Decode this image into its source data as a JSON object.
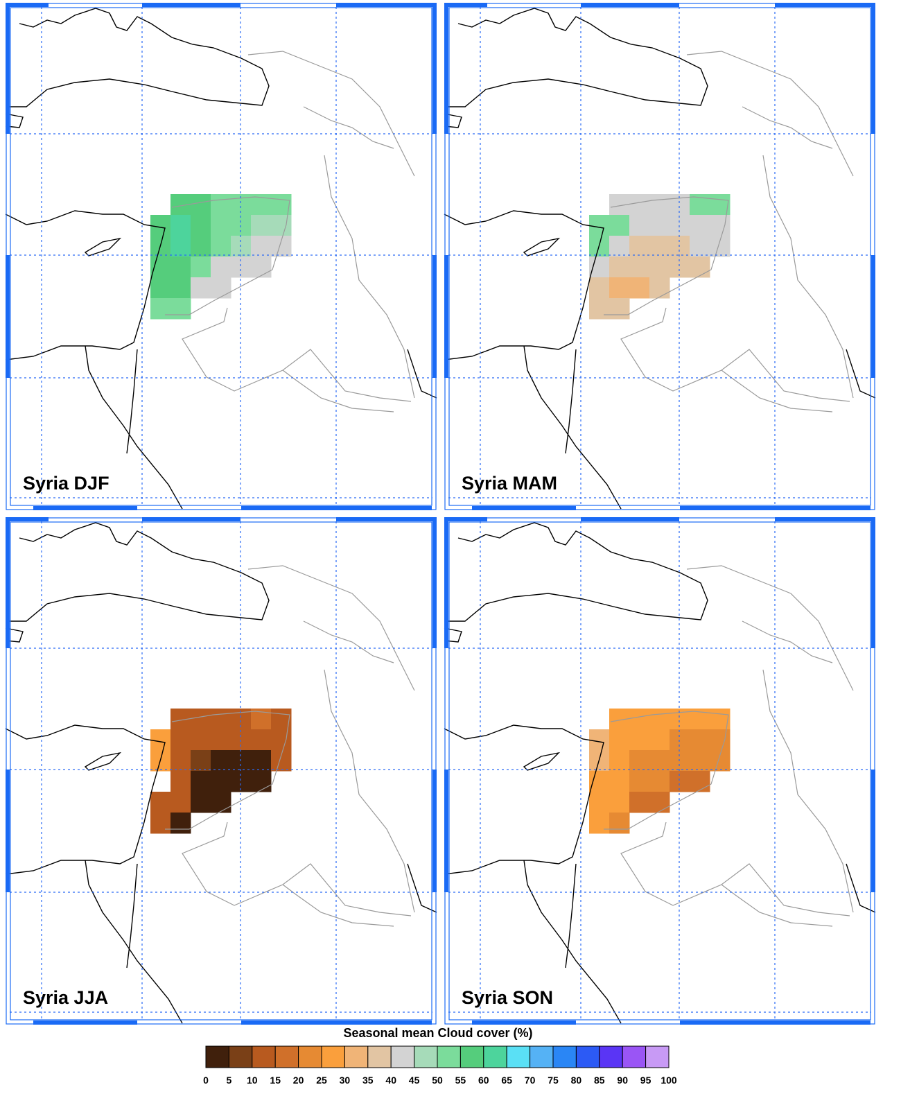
{
  "panels": [
    {
      "label": "Syria DJF",
      "cells": [
        [
          null,
          55,
          55,
          50,
          50,
          50,
          50
        ],
        [
          55,
          60,
          55,
          50,
          50,
          45,
          45
        ],
        [
          55,
          60,
          55,
          50,
          45,
          40,
          40
        ],
        [
          55,
          55,
          50,
          40,
          40,
          40,
          null
        ],
        [
          55,
          55,
          40,
          40,
          null,
          null,
          null
        ],
        [
          50,
          50,
          null,
          null,
          null,
          null,
          null
        ]
      ]
    },
    {
      "label": "Syria MAM",
      "cells": [
        [
          null,
          40,
          40,
          40,
          40,
          50,
          50
        ],
        [
          50,
          50,
          40,
          40,
          40,
          40,
          40
        ],
        [
          50,
          40,
          35,
          35,
          35,
          40,
          40
        ],
        [
          40,
          35,
          35,
          35,
          35,
          35,
          null
        ],
        [
          35,
          30,
          30,
          35,
          null,
          null,
          null
        ],
        [
          35,
          35,
          null,
          null,
          null,
          null,
          null
        ]
      ]
    },
    {
      "label": "Syria JJA",
      "cells": [
        [
          null,
          10,
          10,
          10,
          10,
          15,
          10
        ],
        [
          25,
          10,
          10,
          10,
          10,
          10,
          10
        ],
        [
          25,
          10,
          5,
          0,
          0,
          0,
          10
        ],
        [
          null,
          10,
          0,
          0,
          0,
          0,
          null
        ],
        [
          10,
          10,
          0,
          0,
          null,
          null,
          null
        ],
        [
          10,
          0,
          null,
          null,
          null,
          null,
          null
        ]
      ]
    },
    {
      "label": "Syria SON",
      "cells": [
        [
          null,
          25,
          25,
          25,
          25,
          25,
          25
        ],
        [
          30,
          25,
          25,
          25,
          20,
          20,
          20
        ],
        [
          30,
          25,
          20,
          20,
          20,
          20,
          20
        ],
        [
          25,
          25,
          20,
          20,
          15,
          15,
          null
        ],
        [
          25,
          25,
          15,
          15,
          null,
          null,
          null
        ],
        [
          25,
          20,
          null,
          null,
          null,
          null,
          null
        ]
      ]
    }
  ],
  "colorbar": {
    "title": "Seasonal mean Cloud cover (%)",
    "ticks": [
      0,
      5,
      10,
      15,
      20,
      25,
      30,
      35,
      40,
      45,
      50,
      55,
      60,
      65,
      70,
      75,
      80,
      85,
      90,
      95,
      100
    ],
    "colors": [
      "#40200c",
      "#7a4017",
      "#b85a1f",
      "#d0702a",
      "#e68a33",
      "#fa9f3c",
      "#f0b477",
      "#e2c5a3",
      "#d3d3d3",
      "#a6dbb9",
      "#7bdc9b",
      "#55cd7c",
      "#4dd49c",
      "#5ae0f5",
      "#55b2f5",
      "#2a86f5",
      "#2c5af5",
      "#5a35f5",
      "#9a55f5",
      "#c89af5"
    ]
  }
}
